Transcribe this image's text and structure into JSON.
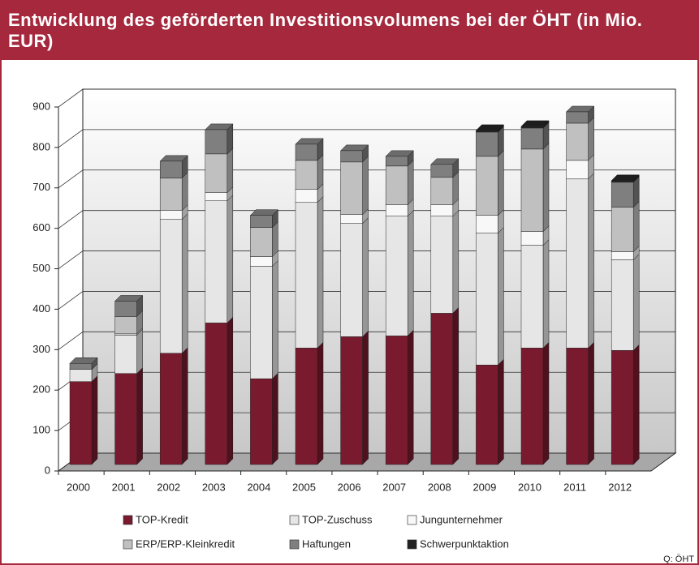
{
  "chart_data": {
    "type": "bar",
    "stacked": true,
    "title": "Entwicklung des geförderten Investitionsvolumens bei der ÖHT (in Mio. EUR)",
    "source": "Q: ÖHT",
    "categories": [
      "2000",
      "2001",
      "2002",
      "2003",
      "2004",
      "2005",
      "2006",
      "2007",
      "2008",
      "2009",
      "2010",
      "2011",
      "2012"
    ],
    "series": [
      {
        "name": "TOP-Kredit",
        "color": "#7a1a2e",
        "values": [
          205,
          225,
          275,
          350,
          212,
          288,
          316,
          318,
          374,
          246,
          288,
          288,
          282
        ]
      },
      {
        "name": "TOP-Zuschuss",
        "color": "#e6e6e6",
        "values": [
          30,
          95,
          331,
          302,
          278,
          360,
          280,
          296,
          240,
          326,
          254,
          418,
          224
        ]
      },
      {
        "name": "Jungunternehmer",
        "color": "#f8f8f8",
        "values": [
          0,
          3,
          22,
          20,
          24,
          32,
          22,
          28,
          28,
          44,
          34,
          46,
          20
        ]
      },
      {
        "name": "ERP/ERP-Kleinkredit",
        "color": "#c0c0c0",
        "values": [
          0,
          43,
          80,
          96,
          72,
          72,
          130,
          96,
          68,
          146,
          204,
          92,
          110
        ]
      },
      {
        "name": "Haftungen",
        "color": "#7f7f7f",
        "values": [
          15,
          38,
          42,
          60,
          30,
          40,
          28,
          24,
          32,
          60,
          52,
          28,
          62
        ]
      },
      {
        "name": "Schwerpunktaktion",
        "color": "#222222",
        "values": [
          0,
          0,
          0,
          0,
          0,
          0,
          0,
          0,
          0,
          4,
          4,
          0,
          4
        ]
      }
    ],
    "ylim": [
      0,
      900
    ],
    "yticks": [
      0,
      100,
      200,
      300,
      400,
      500,
      600,
      700,
      800,
      900
    ],
    "grid": true
  }
}
